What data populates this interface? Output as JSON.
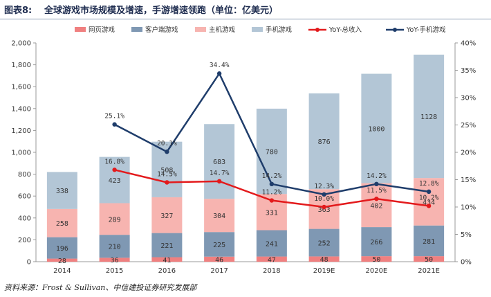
{
  "header": {
    "figure_label": "图表8:",
    "title": "全球游戏市场规模及增速，手游增速领跑（单位：亿美元）"
  },
  "source": "资料来源：Frost & Sullivan、中信建投证券研究发展部",
  "chart_data": {
    "type": "bar",
    "stacked": true,
    "categories": [
      "2014",
      "2015",
      "2016",
      "2017",
      "2018",
      "2019E",
      "2020E",
      "2021E"
    ],
    "series": [
      {
        "name": "网页游戏",
        "values": [
          28,
          36,
          41,
          46,
          47,
          48,
          50,
          50
        ],
        "color": "#f08080"
      },
      {
        "name": "客户端游戏",
        "values": [
          196,
          210,
          221,
          225,
          241,
          252,
          266,
          281
        ],
        "color": "#7f98b3"
      },
      {
        "name": "主机游戏",
        "values": [
          258,
          289,
          327,
          304,
          331,
          363,
          402,
          434
        ],
        "color": "#f7b4b0"
      },
      {
        "name": "手机游戏",
        "values": [
          338,
          423,
          508,
          683,
          780,
          876,
          1000,
          1128
        ],
        "color": "#b3c6d6"
      }
    ],
    "line_series": [
      {
        "name": "YoY-总收入",
        "values": [
          null,
          16.8,
          14.5,
          14.7,
          11.2,
          10.0,
          11.5,
          10.2
        ],
        "labels": [
          "",
          "16.8%",
          "14.5%",
          "14.7%",
          "11.2%",
          "10.0%",
          "11.5%",
          "10.2%"
        ],
        "color": "#e31a1c"
      },
      {
        "name": "YoY-手机游戏",
        "values": [
          null,
          25.1,
          20.1,
          34.4,
          14.2,
          12.3,
          14.2,
          12.8
        ],
        "labels": [
          "",
          "25.1%",
          "20.1%",
          "34.4%",
          "14.2%",
          "12.3%",
          "14.2%",
          "12.8%"
        ],
        "color": "#1f3d6b"
      }
    ],
    "y_left": {
      "min": 0,
      "max": 2000,
      "step": 200,
      "ticks": [
        "0",
        "200",
        "400",
        "600",
        "800",
        "1,000",
        "1,200",
        "1,400",
        "1,600",
        "1,800",
        "2,000"
      ]
    },
    "y_right": {
      "min": 0,
      "max": 40,
      "step": 5,
      "ticks": [
        "0%",
        "5%",
        "10%",
        "15%",
        "20%",
        "25%",
        "30%",
        "35%",
        "40%"
      ]
    },
    "legend_position": "top"
  }
}
